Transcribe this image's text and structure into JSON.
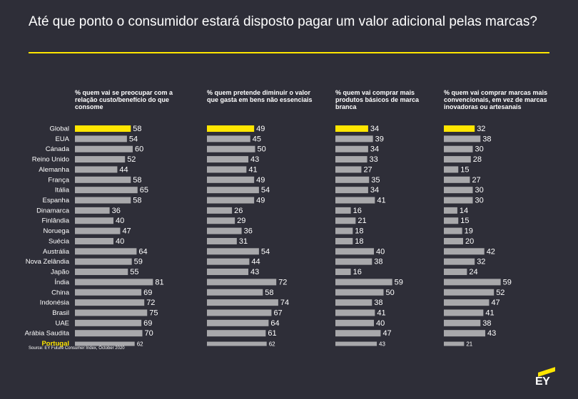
{
  "title": "Até que ponto o consumidor estará disposto pagar um valor adicional pelas marcas?",
  "source": "Source: EY Future Consumer Index, October 2020",
  "logo": "EY",
  "colors": {
    "background": "#2e2e38",
    "accent": "#ffe600",
    "bar": "#a8a8ab",
    "text": "#ffffff"
  },
  "chart_data": {
    "type": "bar",
    "orientation": "horizontal",
    "categories": [
      "Global",
      "EUA",
      "Cánada",
      "Reino Unido",
      "Alemanha",
      "França",
      "Itália",
      "Espanha",
      "Dinamarca",
      "Finlândia",
      "Noruega",
      "Suécia",
      "Austrália",
      "Nova Zelândia",
      "Japão",
      "Índia",
      "China",
      "Indonésia",
      "Brasil",
      "UAE",
      "Arábia Saudita",
      "Portugal"
    ],
    "highlighted": [
      "Global",
      "Portugal"
    ],
    "series": [
      {
        "name": "% quem vai se preocupar com a relação custo/benefício do que consome",
        "values": [
          58,
          54,
          60,
          52,
          44,
          58,
          65,
          58,
          36,
          40,
          47,
          40,
          64,
          59,
          55,
          81,
          69,
          72,
          75,
          69,
          70,
          62
        ]
      },
      {
        "name": "% quem pretende diminuir o valor que gasta em bens não essenciais",
        "values": [
          49,
          45,
          50,
          43,
          41,
          49,
          54,
          49,
          26,
          29,
          36,
          31,
          54,
          44,
          43,
          72,
          58,
          74,
          67,
          64,
          61,
          62
        ]
      },
      {
        "name": "% quem vai comprar mais produtos básicos de marca branca",
        "values": [
          34,
          39,
          34,
          33,
          27,
          35,
          34,
          41,
          16,
          21,
          18,
          18,
          40,
          38,
          16,
          59,
          50,
          38,
          41,
          40,
          47,
          43
        ]
      },
      {
        "name": "% quem vai comprar marcas mais convencionais, em vez de marcas inovadoras ou artesanais",
        "values": [
          32,
          38,
          30,
          28,
          15,
          27,
          30,
          30,
          14,
          15,
          19,
          20,
          42,
          32,
          24,
          59,
          52,
          47,
          41,
          38,
          43,
          21
        ]
      }
    ],
    "legend": "none",
    "grid": false
  }
}
